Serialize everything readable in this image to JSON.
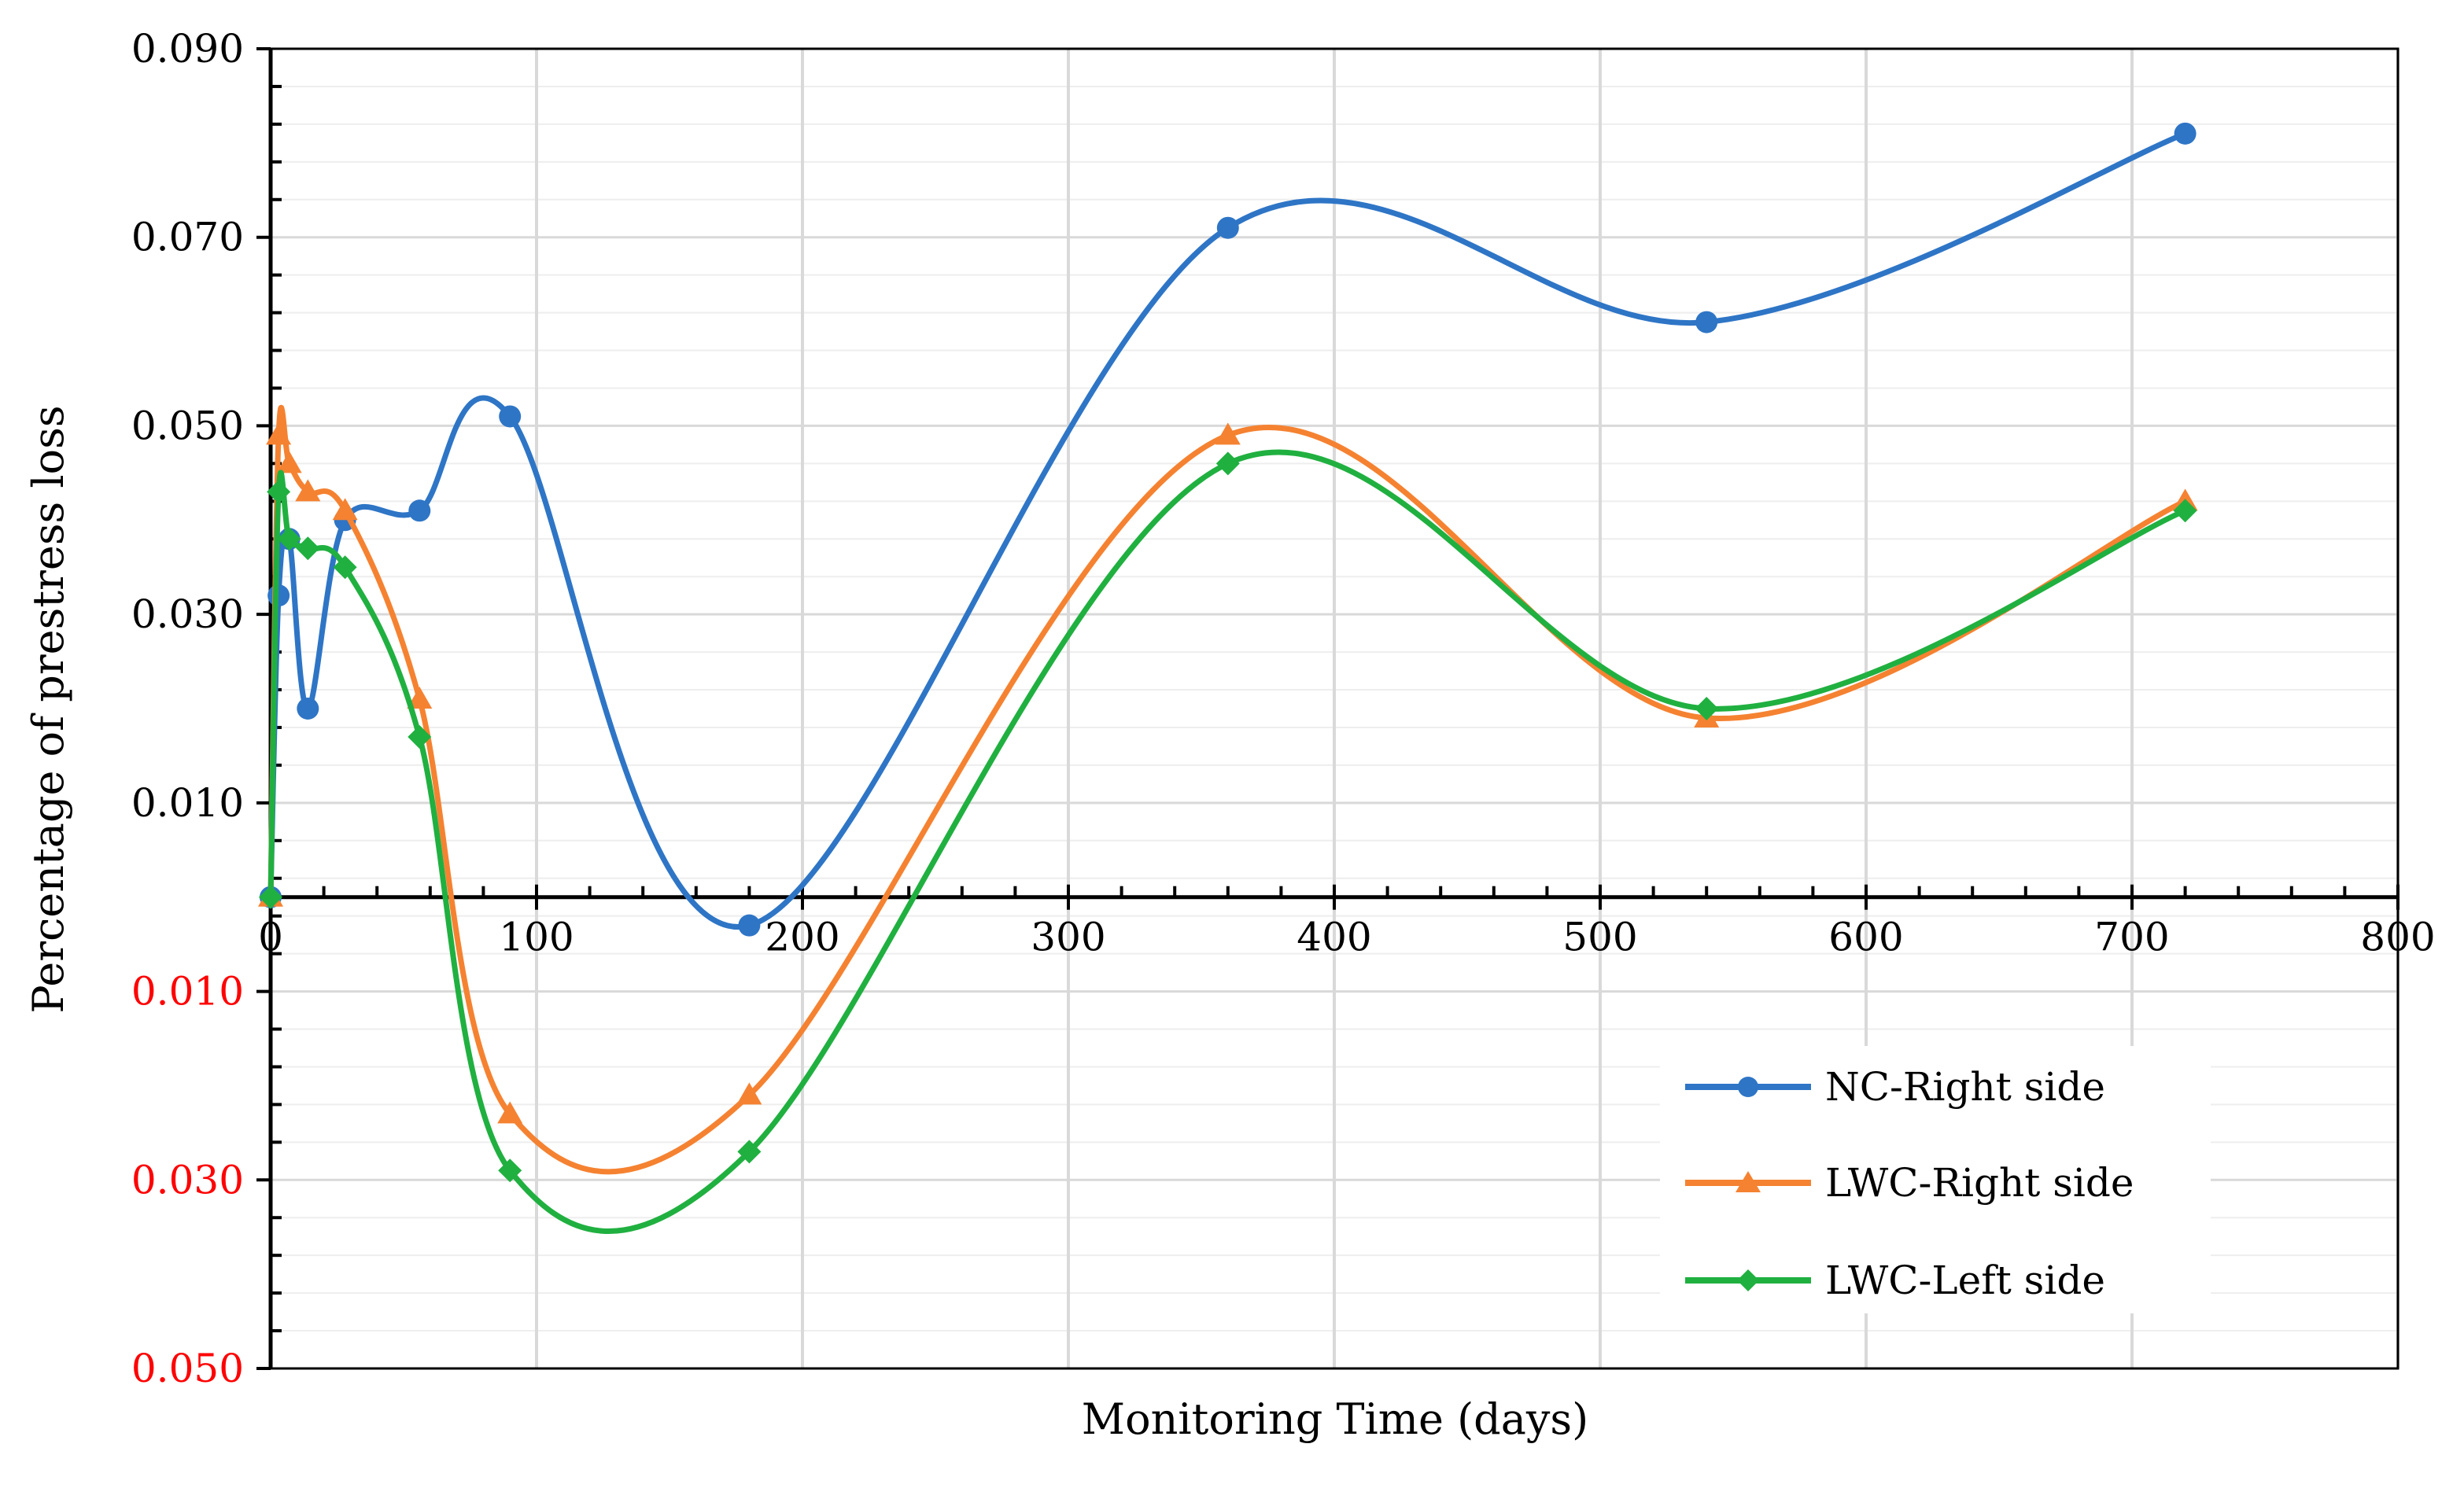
{
  "chart_data": {
    "type": "line",
    "title": "",
    "xlabel": "Monitoring Time (days)",
    "ylabel": "Percentage of prestress loss",
    "xlim": [
      0,
      800
    ],
    "ylim": [
      -0.05,
      0.09
    ],
    "grid": true,
    "legend_position": "bottom-right",
    "x_ticks": [
      {
        "value": 0,
        "label": "0"
      },
      {
        "value": 100,
        "label": "100"
      },
      {
        "value": 200,
        "label": "200"
      },
      {
        "value": 300,
        "label": "300"
      },
      {
        "value": 400,
        "label": "400"
      },
      {
        "value": 500,
        "label": "500"
      },
      {
        "value": 600,
        "label": "600"
      },
      {
        "value": 700,
        "label": "700"
      },
      {
        "value": 800,
        "label": "800"
      }
    ],
    "y_ticks": [
      {
        "value": 0.09,
        "label": "0.090",
        "color": "#000000"
      },
      {
        "value": 0.07,
        "label": "0.070",
        "color": "#000000"
      },
      {
        "value": 0.05,
        "label": "0.050",
        "color": "#000000"
      },
      {
        "value": 0.03,
        "label": "0.030",
        "color": "#000000"
      },
      {
        "value": 0.01,
        "label": "0.010",
        "color": "#000000"
      },
      {
        "value": -0.01,
        "label": "0.010",
        "color": "#ff0000"
      },
      {
        "value": -0.03,
        "label": "0.030",
        "color": "#ff0000"
      },
      {
        "value": -0.05,
        "label": "0.050",
        "color": "#ff0000"
      }
    ],
    "series": [
      {
        "name": "NC-Right side",
        "color": "#2e75c6",
        "marker": "circle",
        "x": [
          0,
          3,
          7,
          14,
          28,
          56,
          90,
          180,
          360,
          540,
          720
        ],
        "y": [
          0.0,
          0.032,
          0.038,
          0.02,
          0.04,
          0.041,
          0.051,
          -0.003,
          0.071,
          0.061,
          0.081
        ]
      },
      {
        "name": "LWC-Right side",
        "color": "#f58231",
        "marker": "triangle",
        "x": [
          0,
          3,
          7,
          14,
          28,
          56,
          90,
          180,
          360,
          540,
          720
        ],
        "y": [
          0.0,
          0.049,
          0.046,
          0.043,
          0.041,
          0.021,
          -0.023,
          -0.021,
          0.049,
          0.019,
          0.042
        ]
      },
      {
        "name": "LWC-Left side",
        "color": "#20b040",
        "marker": "diamond",
        "x": [
          0,
          3,
          7,
          14,
          28,
          56,
          90,
          180,
          360,
          540,
          720
        ],
        "y": [
          0.0,
          0.043,
          0.038,
          0.037,
          0.035,
          0.017,
          -0.029,
          -0.027,
          0.046,
          0.02,
          0.041
        ]
      }
    ]
  }
}
